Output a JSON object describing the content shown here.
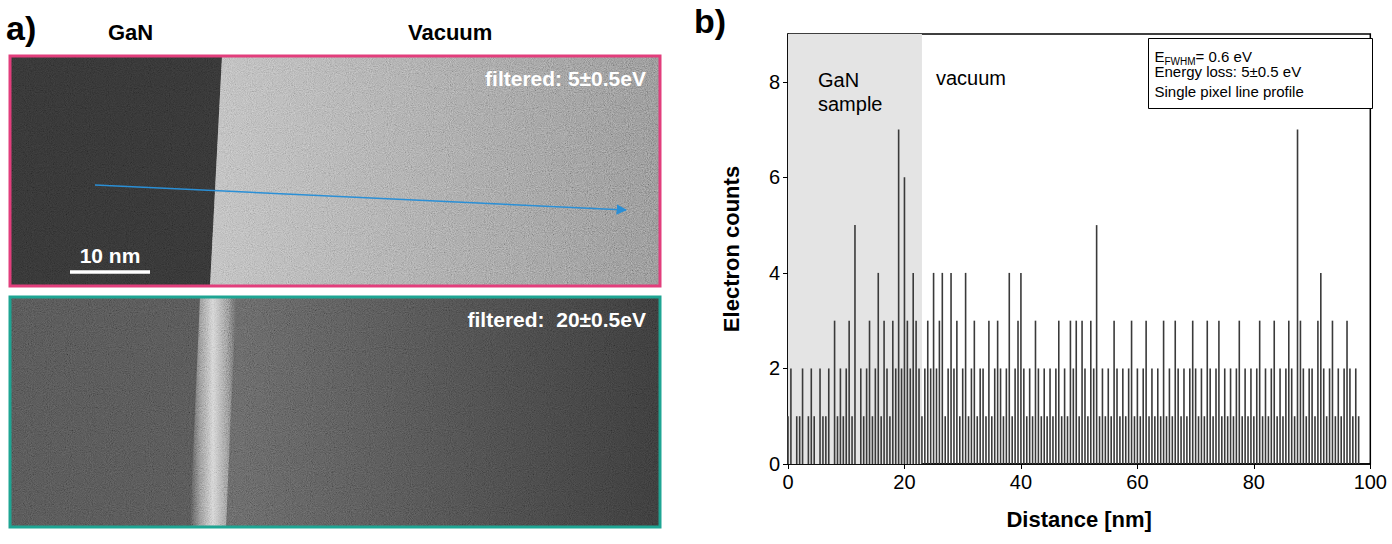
{
  "panel_a": {
    "letter": "a)",
    "left_label": "GaN",
    "right_label": "Vacuum",
    "images": [
      {
        "caption": "filtered: 5±0.5eV",
        "color": "#e23e7c"
      },
      {
        "caption": "filtered:  20±0.5eV",
        "color": "#1ea593"
      }
    ],
    "scale_bar": "10 nm"
  },
  "chart_data": {
    "type": "bar",
    "panel_letter": "b)",
    "xlabel": "Distance [nm]",
    "ylabel": "Electron counts",
    "xlim": [
      0,
      100
    ],
    "xticks": [
      0,
      20,
      40,
      60,
      80,
      100
    ],
    "ylim": [
      0,
      9
    ],
    "yticks": [
      0,
      2,
      4,
      6,
      8
    ],
    "grid": false,
    "color": "#3a3a3a",
    "regions": [
      {
        "label": "GaN sample",
        "x": [
          0,
          23
        ],
        "color": "#e4e4e4"
      }
    ],
    "annotations": [
      "vacuum"
    ],
    "info_box": [
      {
        "text": "E",
        "subscript": "FWHM",
        "after": "= 0.6 eV"
      },
      {
        "text": "Energy loss: 5±0.5 eV"
      },
      {
        "text": "Single pixel line profile"
      }
    ],
    "x": [
      0,
      0.5,
      1,
      1.5,
      2,
      2.5,
      3,
      3.5,
      4,
      4.5,
      5,
      5.5,
      6,
      6.5,
      7,
      7.5,
      8,
      8.5,
      9,
      9.5,
      10,
      10.5,
      11,
      11.5,
      12,
      12.5,
      13,
      13.5,
      14,
      14.5,
      15,
      15.5,
      16,
      16.5,
      17,
      17.5,
      18,
      18.5,
      19,
      19.5,
      20,
      20.5,
      21,
      21.5,
      22,
      22.5,
      23,
      23.5,
      24,
      24.5,
      25,
      25.5,
      26,
      26.5,
      27,
      27.5,
      28,
      28.5,
      29,
      29.5,
      30,
      30.5,
      31,
      31.5,
      32,
      32.5,
      33,
      33.5,
      34,
      34.5,
      35,
      35.5,
      36,
      36.5,
      37,
      37.5,
      38,
      38.5,
      39,
      39.5,
      40,
      40.5,
      41,
      41.5,
      42,
      42.5,
      43,
      43.5,
      44,
      44.5,
      45,
      45.5,
      46,
      46.5,
      47,
      47.5,
      48,
      48.5,
      49,
      49.5,
      50,
      50.5,
      51,
      51.5,
      52,
      52.5,
      53,
      53.5,
      54,
      54.5,
      55,
      55.5,
      56,
      56.5,
      57,
      57.5,
      58,
      58.5,
      59,
      59.5,
      60,
      60.5,
      61,
      61.5,
      62,
      62.5,
      63,
      63.5,
      64,
      64.5,
      65,
      65.5,
      66,
      66.5,
      67,
      67.5,
      68,
      68.5,
      69,
      69.5,
      70,
      70.5,
      71,
      71.5,
      72,
      72.5,
      73,
      73.5,
      74,
      74.5,
      75,
      75.5,
      76,
      76.5,
      77,
      77.5,
      78,
      78.5,
      79,
      79.5,
      80,
      80.5,
      81,
      81.5,
      82,
      82.5,
      83,
      83.5,
      84,
      84.5,
      85,
      85.5,
      86,
      86.5,
      87,
      87.5,
      88,
      88.5,
      89,
      89.5,
      90,
      90.5,
      91,
      91.5,
      92,
      92.5,
      93,
      93.5,
      94,
      94.5,
      95,
      95.5,
      96,
      96.5,
      97,
      97.5,
      98
    ],
    "values": [
      1,
      2,
      0,
      1,
      1,
      2,
      0,
      1,
      2,
      1,
      0,
      2,
      1,
      1,
      2,
      0,
      3,
      1,
      2,
      1,
      2,
      3,
      1,
      5,
      0,
      2,
      1,
      2,
      3,
      1,
      2,
      4,
      1,
      3,
      2,
      1,
      3,
      2,
      7,
      2,
      6,
      3,
      2,
      4,
      3,
      2,
      1,
      2,
      3,
      2,
      4,
      2,
      3,
      4,
      1,
      2,
      4,
      2,
      3,
      1,
      2,
      4,
      1,
      2,
      3,
      1,
      2,
      2,
      1,
      3,
      1,
      2,
      3,
      2,
      1,
      2,
      4,
      1,
      2,
      3,
      4,
      2,
      1,
      2,
      1,
      3,
      2,
      1,
      2,
      1,
      2,
      1,
      2,
      3,
      1,
      2,
      1,
      3,
      2,
      3,
      1,
      3,
      2,
      1,
      3,
      2,
      5,
      1,
      2,
      1,
      2,
      1,
      3,
      2,
      1,
      2,
      1,
      2,
      3,
      1,
      2,
      1,
      2,
      3,
      1,
      2,
      1,
      2,
      1,
      3,
      1,
      2,
      1,
      3,
      2,
      1,
      2,
      1,
      2,
      3,
      2,
      1,
      2,
      1,
      3,
      2,
      1,
      2,
      3,
      1,
      2,
      1,
      2,
      1,
      2,
      3,
      1,
      2,
      1,
      2,
      1,
      2,
      3,
      1,
      2,
      1,
      2,
      3,
      1,
      2,
      1,
      2,
      3,
      2,
      1,
      7,
      3,
      2,
      1,
      2,
      2,
      1,
      3,
      4,
      2,
      1,
      2,
      3,
      1,
      2,
      1,
      2,
      3,
      2,
      1,
      2,
      1
    ]
  }
}
